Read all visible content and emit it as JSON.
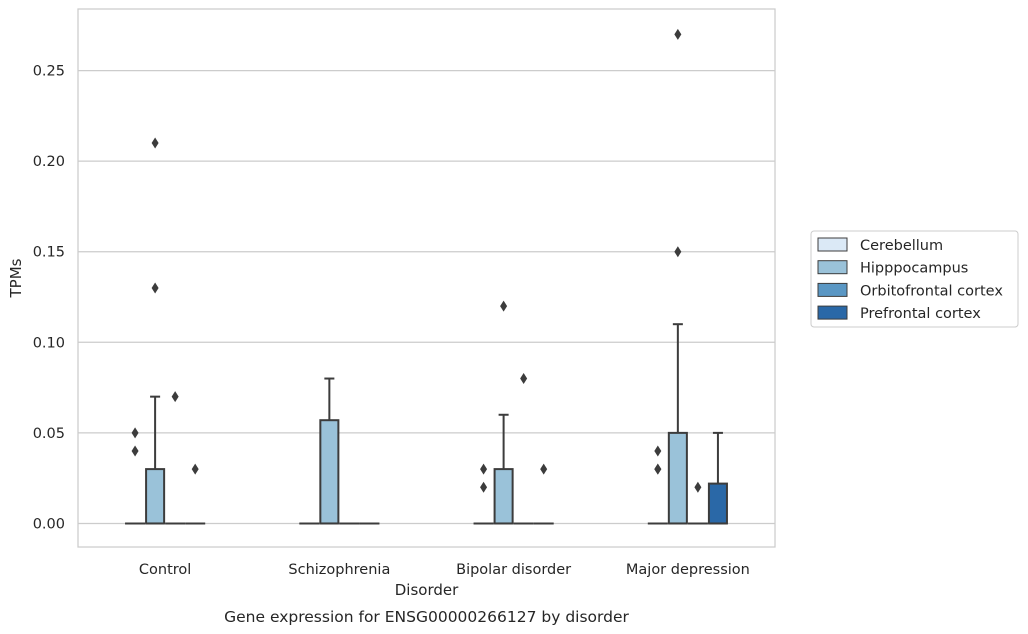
{
  "chart_data": {
    "type": "box",
    "title": "",
    "caption": "Gene expression for ENSG00000266127 by disorder",
    "xlabel": "Disorder",
    "ylabel": "TPMs",
    "ylim": [
      -0.013,
      0.284
    ],
    "yticks": [
      0.0,
      0.05,
      0.1,
      0.15,
      0.2,
      0.25
    ],
    "ytick_labels": [
      "0.00",
      "0.05",
      "0.10",
      "0.15",
      "0.20",
      "0.25"
    ],
    "grid": "horizontal",
    "legend_position": "right",
    "categories": [
      "Control",
      "Schizophrenia",
      "Bipolar disorder",
      "Major depression"
    ],
    "series": [
      {
        "name": "Cerebellum",
        "color": "#dbe9f6",
        "boxes": [
          {
            "q1": 0,
            "median": 0,
            "q3": 0,
            "whisker_low": 0,
            "whisker_high": 0,
            "outliers": [
              0.04,
              0.05
            ]
          },
          {
            "q1": 0,
            "median": 0,
            "q3": 0,
            "whisker_low": 0,
            "whisker_high": 0,
            "outliers": []
          },
          {
            "q1": 0,
            "median": 0,
            "q3": 0,
            "whisker_low": 0,
            "whisker_high": 0,
            "outliers": [
              0.02,
              0.03
            ]
          },
          {
            "q1": 0,
            "median": 0,
            "q3": 0,
            "whisker_low": 0,
            "whisker_high": 0,
            "outliers": [
              0.03,
              0.03,
              0.04
            ]
          }
        ]
      },
      {
        "name": "Hipppocampus",
        "color": "#9ac2d9",
        "boxes": [
          {
            "q1": 0,
            "median": 0,
            "q3": 0.03,
            "whisker_low": 0,
            "whisker_high": 0.07,
            "outliers": [
              0.13,
              0.21
            ]
          },
          {
            "q1": 0,
            "median": 0,
            "q3": 0.057,
            "whisker_low": 0,
            "whisker_high": 0.08,
            "outliers": []
          },
          {
            "q1": 0,
            "median": 0,
            "q3": 0.03,
            "whisker_low": 0,
            "whisker_high": 0.06,
            "outliers": [
              0.12
            ]
          },
          {
            "q1": 0,
            "median": 0,
            "q3": 0.05,
            "whisker_low": 0,
            "whisker_high": 0.11,
            "outliers": [
              0.15,
              0.27
            ]
          }
        ]
      },
      {
        "name": "Orbitofrontal cortex",
        "color": "#5a97c4",
        "boxes": [
          {
            "q1": 0,
            "median": 0,
            "q3": 0,
            "whisker_low": 0,
            "whisker_high": 0,
            "outliers": [
              0.07
            ]
          },
          {
            "q1": 0,
            "median": 0,
            "q3": 0,
            "whisker_low": 0,
            "whisker_high": 0,
            "outliers": []
          },
          {
            "q1": 0,
            "median": 0,
            "q3": 0,
            "whisker_low": 0,
            "whisker_high": 0,
            "outliers": [
              0.08
            ]
          },
          {
            "q1": 0,
            "median": 0,
            "q3": 0,
            "whisker_low": 0,
            "whisker_high": 0,
            "outliers": [
              0.02
            ]
          }
        ]
      },
      {
        "name": "Prefrontal cortex",
        "color": "#2a68a7",
        "boxes": [
          {
            "q1": 0,
            "median": 0,
            "q3": 0,
            "whisker_low": 0,
            "whisker_high": 0,
            "outliers": [
              0.03
            ]
          },
          {
            "q1": 0,
            "median": 0,
            "q3": 0,
            "whisker_low": 0,
            "whisker_high": 0,
            "outliers": []
          },
          {
            "q1": 0,
            "median": 0,
            "q3": 0,
            "whisker_low": 0,
            "whisker_high": 0,
            "outliers": [
              0.03
            ]
          },
          {
            "q1": 0,
            "median": 0,
            "q3": 0.022,
            "whisker_low": 0,
            "whisker_high": 0.05,
            "outliers": []
          }
        ]
      }
    ]
  }
}
